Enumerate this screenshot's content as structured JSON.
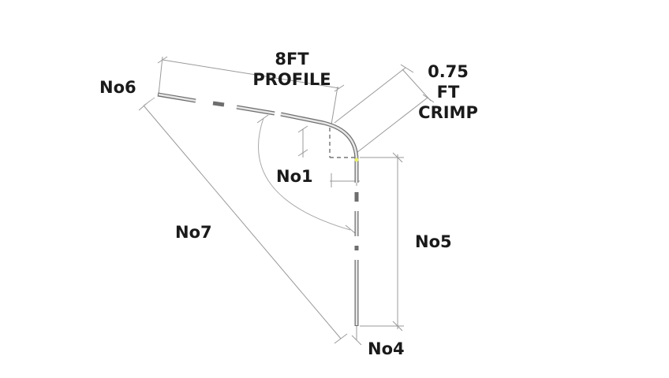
{
  "labels": {
    "no6": "No6",
    "profile_line1": "8FT",
    "profile_line2": "PROFILE",
    "crimp_line1": "0.75",
    "crimp_line2": "FT",
    "crimp_line3": "CRIMP",
    "no1": "No1",
    "no7": "No7",
    "no5": "No5",
    "no4": "No4"
  },
  "colors": {
    "text": "#1a1a1a",
    "dimension": "#9a9a9a",
    "profile": "#6e6e6e",
    "highlight_point": "#e8f06a"
  }
}
